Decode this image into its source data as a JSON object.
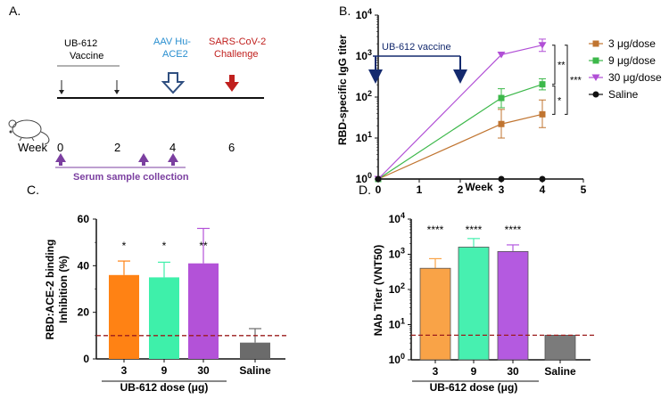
{
  "panels": {
    "a": {
      "label": "A.",
      "vaccine_label_line1": "UB-612",
      "vaccine_label_line2": "Vaccine",
      "aav_line1": "AAV Hu-",
      "aav_line2": "ACE2",
      "challenge_line1": "SARS-CoV-2",
      "challenge_line2": "Challenge",
      "week_label": "Week",
      "week_ticks": [
        "0",
        "2",
        "4",
        "6"
      ],
      "serum_label": "Serum sample collection",
      "colors": {
        "aav": "#2a8fd0",
        "challenge": "#c0201e",
        "serum": "#7b3fa0",
        "arrow_dark": "#2f4f80"
      }
    },
    "b": {
      "label": "B.",
      "vaccine_banner": "UB-612 vaccine",
      "significance": [
        "**",
        "*",
        "***"
      ]
    },
    "c": {
      "label": "C."
    },
    "d": {
      "label": "D."
    }
  },
  "chart_data": [
    {
      "id": "B",
      "type": "line",
      "title": "",
      "xlabel": "Week",
      "ylabel": "RBD-specific IgG titer",
      "xlim": [
        0,
        5
      ],
      "xticks": [
        "0",
        "1",
        "2",
        "3",
        "4",
        "5"
      ],
      "ylim_log10": [
        0,
        4
      ],
      "yticks": [
        {
          "base": "10",
          "exp": "0"
        },
        {
          "base": "10",
          "exp": "1"
        },
        {
          "base": "10",
          "exp": "2"
        },
        {
          "base": "10",
          "exp": "3"
        },
        {
          "base": "10",
          "exp": "4"
        }
      ],
      "series": [
        {
          "name": "3 μg/dose",
          "color": "#c07430",
          "marker": "square",
          "x": [
            0,
            3,
            4
          ],
          "y": [
            1,
            22,
            38
          ],
          "err_low": [
            1,
            10,
            18
          ],
          "err_high": [
            1,
            50,
            85
          ]
        },
        {
          "name": "9 μg/dose",
          "color": "#3cb84a",
          "marker": "square",
          "x": [
            0,
            3,
            4
          ],
          "y": [
            1,
            95,
            205
          ],
          "err_low": [
            1,
            55,
            150
          ],
          "err_high": [
            1,
            160,
            280
          ]
        },
        {
          "name": "30 μg/dose",
          "color": "#b14fd6",
          "marker": "triangle-down",
          "x": [
            0,
            3,
            4
          ],
          "y": [
            1,
            1080,
            1850
          ],
          "err_low": [
            1,
            1080,
            1300
          ],
          "err_high": [
            1,
            1080,
            2600
          ]
        },
        {
          "name": "Saline",
          "color": "#111111",
          "marker": "circle",
          "x": [
            0,
            3,
            4
          ],
          "y": [
            1,
            1,
            1
          ],
          "err_low": [
            1,
            1,
            1
          ],
          "err_high": [
            1,
            1,
            1
          ]
        }
      ]
    },
    {
      "id": "C",
      "type": "bar",
      "xlabel": "UB-612 dose (μg)",
      "ylabel_line1": "RBD:ACE-2 binding",
      "ylabel_line2": "Inhibition (%)",
      "categories": [
        "3",
        "9",
        "30",
        "Saline"
      ],
      "values": [
        36,
        35,
        41,
        7
      ],
      "errors": [
        6,
        6.5,
        15,
        6
      ],
      "colors": [
        "#ff8214",
        "#3ef0aa",
        "#b352d8",
        "#6b6b6b"
      ],
      "significance": [
        "*",
        "*",
        "**",
        ""
      ],
      "ylim": [
        0,
        60
      ],
      "yticks": [
        "0",
        "20",
        "40",
        "60"
      ],
      "threshold": 10,
      "threshold_color": "#9b1c1c"
    },
    {
      "id": "D",
      "type": "bar",
      "xlabel": "UB-612 dose (μg)",
      "ylabel": "NAb Titer (VNT50)",
      "categories": [
        "3",
        "9",
        "30",
        "Saline"
      ],
      "values": [
        400,
        1600,
        1200,
        5
      ],
      "err_high": [
        750,
        2800,
        1850,
        5
      ],
      "colors": [
        "#f9a347",
        "#47f0b0",
        "#b45ae0",
        "#7b7b7b"
      ],
      "significance": [
        "****",
        "****",
        "****",
        ""
      ],
      "ylim_log10": [
        0,
        4
      ],
      "yticks": [
        {
          "base": "10",
          "exp": "0"
        },
        {
          "base": "10",
          "exp": "1"
        },
        {
          "base": "10",
          "exp": "2"
        },
        {
          "base": "10",
          "exp": "3"
        },
        {
          "base": "10",
          "exp": "4"
        }
      ],
      "threshold": 5,
      "threshold_color": "#9b1c1c"
    }
  ]
}
